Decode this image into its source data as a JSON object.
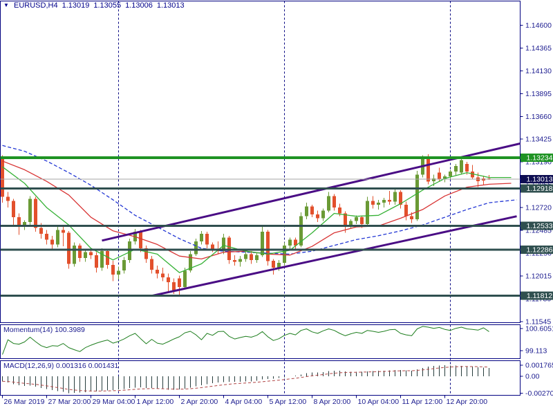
{
  "header": {
    "symbol_period": "EURUSD,H4",
    "open": "1.13019",
    "high": "1.13055",
    "low": "1.13006",
    "close": "1.13013"
  },
  "icons": {
    "dropdown": "▼"
  },
  "panels": {
    "momentum_label": "Momentum(14) 100.3989",
    "macd_label": "MACD(12,26,9) 0.001316 0.001431"
  },
  "colors": {
    "frame": "#000080",
    "axis_text": "#1b1b8f",
    "separator": "#000080",
    "candle_up": "#6a9a35",
    "candle_down": "#e2502c",
    "ma_fast": "#35b135",
    "ma_mid": "#d83434",
    "ma_slow": "#2236d4",
    "channel": "#4a0d85",
    "level_green": "#1e9323",
    "level_teal": "#2F4F4F",
    "current_line": "#a6a6a6",
    "current_box": "#0e0e52",
    "momentum_line": "#1e7e1e",
    "macd_hist": "#263c3c",
    "macd_signal": "#b04343",
    "marker_text": "#ffffff"
  },
  "chart_data": {
    "type": "candlestick+indicators",
    "symbol": "EURUSD",
    "timeframe": "H4",
    "x_labels": [
      {
        "index": 0,
        "text": "26 Mar 2019"
      },
      {
        "index": 8,
        "text": "27 Mar 20:00"
      },
      {
        "index": 16,
        "text": "29 Mar 04:00"
      },
      {
        "index": 24,
        "text": "1 Apr 12:00"
      },
      {
        "index": 32,
        "text": "2 Apr 20:00"
      },
      {
        "index": 40,
        "text": "4 Apr 04:00"
      },
      {
        "index": 48,
        "text": "5 Apr 12:00"
      },
      {
        "index": 56,
        "text": "8 Apr 20:00"
      },
      {
        "index": 64,
        "text": "10 Apr 04:00"
      },
      {
        "index": 72,
        "text": "11 Apr 12:00"
      },
      {
        "index": 80,
        "text": "12 Apr 20:00"
      }
    ],
    "separator_indices": [
      21,
      51,
      81
    ],
    "price_ticks": [
      "1.14600",
      "1.14365",
      "1.14130",
      "1.13895",
      "1.13660",
      "1.13425",
      "1.13190",
      "1.12955",
      "1.12720",
      "1.12485",
      "1.12250",
      "1.12015",
      "1.11780",
      "1.11545"
    ],
    "price_markers": [
      {
        "text": "1.13234",
        "price": 1.13234,
        "box": "level_green",
        "line": "level_green",
        "lw": 4
      },
      {
        "text": "1.13013",
        "price": 1.13013,
        "box": "current_box",
        "line": "current_line",
        "lw": 1
      },
      {
        "text": "1.12918",
        "price": 1.12918,
        "box": "level_teal",
        "line": "level_teal",
        "lw": 3
      },
      {
        "text": "1.12533",
        "price": 1.12533,
        "box": "level_teal",
        "line": "level_teal",
        "lw": 3
      },
      {
        "text": "1.12286",
        "price": 1.12286,
        "box": "level_teal",
        "line": "level_teal",
        "lw": 3
      },
      {
        "text": "1.11812",
        "price": 1.11812,
        "box": "level_teal",
        "line": "level_teal",
        "lw": 3
      }
    ],
    "channel": {
      "upper": [
        [
          18,
          1.1238
        ],
        [
          94,
          1.1338
        ]
      ],
      "lower": [
        [
          27,
          1.1181
        ],
        [
          93,
          1.1263
        ]
      ]
    },
    "ma_fast": [
      [
        0,
        1.1314
      ],
      [
        4,
        1.1297
      ],
      [
        8,
        1.1272
      ],
      [
        12,
        1.1254
      ],
      [
        16,
        1.123
      ],
      [
        20,
        1.1218
      ],
      [
        24,
        1.1229
      ],
      [
        28,
        1.1224
      ],
      [
        32,
        1.1205
      ],
      [
        36,
        1.1214
      ],
      [
        40,
        1.1233
      ],
      [
        44,
        1.1227
      ],
      [
        48,
        1.1224
      ],
      [
        52,
        1.1228
      ],
      [
        56,
        1.1246
      ],
      [
        60,
        1.1266
      ],
      [
        64,
        1.1263
      ],
      [
        68,
        1.1264
      ],
      [
        72,
        1.1276
      ],
      [
        76,
        1.129
      ],
      [
        80,
        1.1302
      ],
      [
        84,
        1.1308
      ],
      [
        88,
        1.1303
      ],
      [
        92,
        1.1303
      ]
    ],
    "ma_mid": [
      [
        0,
        1.132
      ],
      [
        4,
        1.1311
      ],
      [
        8,
        1.1299
      ],
      [
        12,
        1.1285
      ],
      [
        16,
        1.1262
      ],
      [
        20,
        1.1248
      ],
      [
        24,
        1.1242
      ],
      [
        28,
        1.1234
      ],
      [
        32,
        1.1222
      ],
      [
        36,
        1.1219
      ],
      [
        40,
        1.1226
      ],
      [
        44,
        1.1227
      ],
      [
        48,
        1.1224
      ],
      [
        52,
        1.1223
      ],
      [
        56,
        1.1232
      ],
      [
        60,
        1.1246
      ],
      [
        64,
        1.1252
      ],
      [
        68,
        1.1253
      ],
      [
        72,
        1.1261
      ],
      [
        76,
        1.127
      ],
      [
        80,
        1.1284
      ],
      [
        84,
        1.1293
      ],
      [
        88,
        1.1296
      ],
      [
        92,
        1.1297
      ]
    ],
    "ma_slow": [
      [
        0,
        1.1336
      ],
      [
        4,
        1.133
      ],
      [
        8,
        1.132
      ],
      [
        12,
        1.1308
      ],
      [
        16,
        1.1295
      ],
      [
        20,
        1.128
      ],
      [
        24,
        1.1264
      ],
      [
        28,
        1.1252
      ],
      [
        32,
        1.124
      ],
      [
        36,
        1.123
      ],
      [
        40,
        1.1227
      ],
      [
        44,
        1.1226
      ],
      [
        48,
        1.1225
      ],
      [
        52,
        1.1224
      ],
      [
        56,
        1.1227
      ],
      [
        60,
        1.1233
      ],
      [
        64,
        1.1239
      ],
      [
        68,
        1.1243
      ],
      [
        72,
        1.1248
      ],
      [
        76,
        1.1254
      ],
      [
        80,
        1.1262
      ],
      [
        84,
        1.127
      ],
      [
        88,
        1.1277
      ],
      [
        93,
        1.128
      ]
    ],
    "candles": [
      [
        1.1324,
        1.1326,
        1.1277,
        1.1283
      ],
      [
        1.1283,
        1.1288,
        1.1272,
        1.1279
      ],
      [
        1.1279,
        1.1281,
        1.1254,
        1.1262
      ],
      [
        1.1262,
        1.1266,
        1.1244,
        1.1253
      ],
      [
        1.1253,
        1.1259,
        1.1249,
        1.1257
      ],
      [
        1.1257,
        1.1284,
        1.1253,
        1.1281
      ],
      [
        1.1281,
        1.1283,
        1.1247,
        1.1251
      ],
      [
        1.1251,
        1.1256,
        1.124,
        1.1245
      ],
      [
        1.1245,
        1.1249,
        1.1234,
        1.1239
      ],
      [
        1.1239,
        1.1243,
        1.1229,
        1.1234
      ],
      [
        1.1234,
        1.1252,
        1.1231,
        1.1249
      ],
      [
        1.1249,
        1.1253,
        1.1232,
        1.1246
      ],
      [
        1.1246,
        1.1248,
        1.1209,
        1.1214
      ],
      [
        1.1214,
        1.1236,
        1.1211,
        1.1233
      ],
      [
        1.1233,
        1.1235,
        1.1216,
        1.122
      ],
      [
        1.122,
        1.1229,
        1.1216,
        1.1226
      ],
      [
        1.1226,
        1.123,
        1.1219,
        1.1223
      ],
      [
        1.1223,
        1.1226,
        1.1205,
        1.121
      ],
      [
        1.121,
        1.123,
        1.1207,
        1.1227
      ],
      [
        1.1227,
        1.1229,
        1.1209,
        1.1213
      ],
      [
        1.1213,
        1.1217,
        1.1196,
        1.1203
      ],
      [
        1.1203,
        1.1211,
        1.1198,
        1.1207
      ],
      [
        1.1207,
        1.1221,
        1.1204,
        1.1218
      ],
      [
        1.1218,
        1.124,
        1.1215,
        1.1237
      ],
      [
        1.1237,
        1.125,
        1.1234,
        1.1247
      ],
      [
        1.1247,
        1.1249,
        1.1226,
        1.123
      ],
      [
        1.123,
        1.1233,
        1.1215,
        1.1219
      ],
      [
        1.1219,
        1.1222,
        1.1204,
        1.1208
      ],
      [
        1.1208,
        1.1212,
        1.1199,
        1.1204
      ],
      [
        1.1204,
        1.121,
        1.1196,
        1.12
      ],
      [
        1.12,
        1.1204,
        1.1185,
        1.1195
      ],
      [
        1.1195,
        1.1199,
        1.1183,
        1.1187
      ],
      [
        1.1199,
        1.1202,
        1.118,
        1.119
      ],
      [
        1.119,
        1.121,
        1.1188,
        1.1207
      ],
      [
        1.1207,
        1.1227,
        1.1205,
        1.1224
      ],
      [
        1.1224,
        1.124,
        1.1222,
        1.1237
      ],
      [
        1.1237,
        1.1248,
        1.1234,
        1.1245
      ],
      [
        1.1245,
        1.1247,
        1.123,
        1.1234
      ],
      [
        1.1234,
        1.1236,
        1.1226,
        1.1229
      ],
      [
        1.1229,
        1.1237,
        1.1224,
        1.1227
      ],
      [
        1.1227,
        1.1245,
        1.1224,
        1.1241
      ],
      [
        1.1241,
        1.1243,
        1.1214,
        1.1218
      ],
      [
        1.1218,
        1.1223,
        1.1212,
        1.1216
      ],
      [
        1.1216,
        1.1222,
        1.1211,
        1.1219
      ],
      [
        1.1219,
        1.1227,
        1.1216,
        1.1224
      ],
      [
        1.1224,
        1.1227,
        1.1214,
        1.1218
      ],
      [
        1.1218,
        1.1226,
        1.1215,
        1.1223
      ],
      [
        1.1223,
        1.1252,
        1.1221,
        1.1247
      ],
      [
        1.1247,
        1.1249,
        1.1212,
        1.1217
      ],
      [
        1.1217,
        1.1219,
        1.1203,
        1.121
      ],
      [
        1.121,
        1.1218,
        1.1207,
        1.1215
      ],
      [
        1.1215,
        1.1236,
        1.1212,
        1.1233
      ],
      [
        1.1233,
        1.1241,
        1.1229,
        1.1239
      ],
      [
        1.1239,
        1.1241,
        1.1229,
        1.1233
      ],
      [
        1.1233,
        1.1267,
        1.1231,
        1.1263
      ],
      [
        1.1263,
        1.1277,
        1.126,
        1.1273
      ],
      [
        1.1273,
        1.1275,
        1.1262,
        1.1265
      ],
      [
        1.1265,
        1.1269,
        1.1257,
        1.1261
      ],
      [
        1.1261,
        1.1271,
        1.1258,
        1.1269
      ],
      [
        1.1269,
        1.1288,
        1.1267,
        1.1284
      ],
      [
        1.1284,
        1.1286,
        1.1269,
        1.1272
      ],
      [
        1.1272,
        1.1276,
        1.1263,
        1.1266
      ],
      [
        1.1266,
        1.1268,
        1.1246,
        1.1254
      ],
      [
        1.1254,
        1.126,
        1.1251,
        1.1258
      ],
      [
        1.1258,
        1.1264,
        1.1255,
        1.1262
      ],
      [
        1.1262,
        1.1264,
        1.1251,
        1.1255
      ],
      [
        1.1255,
        1.1283,
        1.1252,
        1.1279
      ],
      [
        1.1279,
        1.1284,
        1.1271,
        1.1275
      ],
      [
        1.1275,
        1.128,
        1.127,
        1.1277
      ],
      [
        1.1277,
        1.1282,
        1.1272,
        1.128
      ],
      [
        1.128,
        1.1289,
        1.1275,
        1.1278
      ],
      [
        1.1278,
        1.1291,
        1.1275,
        1.1288
      ],
      [
        1.1288,
        1.129,
        1.1271,
        1.1275
      ],
      [
        1.1275,
        1.1278,
        1.1259,
        1.1263
      ],
      [
        1.1263,
        1.1267,
        1.1256,
        1.126
      ],
      [
        1.126,
        1.131,
        1.1258,
        1.1306
      ],
      [
        1.1306,
        1.1326,
        1.1303,
        1.1322
      ],
      [
        1.1322,
        1.1327,
        1.1296,
        1.1299
      ],
      [
        1.1299,
        1.1306,
        1.1294,
        1.1302
      ],
      [
        1.1308,
        1.1313,
        1.1299,
        1.1301
      ],
      [
        1.1301,
        1.1306,
        1.1298,
        1.1304
      ],
      [
        1.1304,
        1.1311,
        1.1301,
        1.1309
      ],
      [
        1.1309,
        1.1317,
        1.1305,
        1.1315
      ],
      [
        1.1308,
        1.1323,
        1.1306,
        1.1321
      ],
      [
        1.1317,
        1.1319,
        1.1306,
        1.1309
      ],
      [
        1.1309,
        1.1316,
        1.1301,
        1.1303
      ],
      [
        1.1303,
        1.1308,
        1.1293,
        1.1299
      ],
      [
        1.1302,
        1.1305,
        1.1295,
        1.13
      ],
      [
        1.13019,
        1.13055,
        1.13006,
        1.13013
      ]
    ],
    "momentum": {
      "name": "Momentum(14)",
      "current": 100.3989,
      "ticks": [
        {
          "text": "100.6051",
          "value": 100.6051
        },
        {
          "text": "99.113",
          "value": 99.113
        }
      ],
      "values": [
        98.85,
        99.85,
        99.6,
        99.55,
        99.7,
        100.02,
        99.72,
        99.45,
        99.32,
        99.45,
        99.42,
        99.6,
        99.32,
        99.18,
        99.05,
        99.32,
        99.48,
        99.62,
        99.74,
        99.83,
        99.62,
        99.74,
        99.9,
        100.12,
        100.28,
        99.92,
        99.58,
        99.88,
        99.62,
        99.55,
        99.72,
        99.9,
        100.05,
        100.32,
        100.42,
        100.18,
        99.85,
        100.28,
        100.15,
        100.4,
        100.42,
        100.08,
        99.9,
        100.0,
        100.08,
        100.02,
        100.15,
        100.4,
        100.05,
        99.8,
        99.92,
        100.15,
        100.28,
        100.18,
        100.48,
        100.58,
        100.38,
        100.28,
        100.45,
        100.58,
        100.48,
        100.28,
        100.12,
        100.25,
        100.35,
        100.28,
        100.48,
        100.42,
        100.35,
        100.42,
        100.52,
        100.55,
        100.28,
        100.18,
        100.12,
        100.58,
        100.75,
        100.7,
        100.62,
        100.68,
        100.55,
        100.48,
        100.62,
        100.7,
        100.58,
        100.55,
        100.5,
        100.65,
        100.3989
      ]
    },
    "macd": {
      "name": "MACD(12,26,9)",
      "current_main": 0.001316,
      "current_signal": 0.001431,
      "ticks": [
        {
          "text": "0.001765",
          "value": 0.001765
        },
        {
          "text": "0.00",
          "value": 0
        },
        {
          "text": "-0.002703",
          "value": -0.002703
        }
      ],
      "hist": [
        -0.0008,
        -0.001,
        -0.00125,
        -0.00145,
        -0.00155,
        -0.0015,
        -0.00165,
        -0.00185,
        -0.00205,
        -0.0022,
        -0.00235,
        -0.0025,
        -0.00268,
        -0.00262,
        -0.00258,
        -0.00252,
        -0.00245,
        -0.00242,
        -0.00232,
        -0.00224,
        -0.0022,
        -0.00212,
        -0.00202,
        -0.0019,
        -0.0018,
        -0.00178,
        -0.00185,
        -0.00188,
        -0.00195,
        -0.00205,
        -0.00215,
        -0.00215,
        -0.00208,
        -0.00196,
        -0.0018,
        -0.0016,
        -0.00142,
        -0.00125,
        -0.00112,
        -0.00102,
        -0.00092,
        -0.0009,
        -0.0009,
        -0.00088,
        -0.00084,
        -0.0008,
        -0.0007,
        -0.00052,
        -0.00042,
        -0.0004,
        -0.0003,
        -0.00015,
        2e-05,
        0.0001,
        0.0003,
        0.0005,
        0.00058,
        0.0006,
        0.00068,
        0.0008,
        0.00088,
        0.00086,
        0.00078,
        0.00072,
        0.0007,
        0.00072,
        0.00078,
        0.00082,
        0.00086,
        0.0009,
        0.00096,
        0.001,
        0.00098,
        0.00092,
        0.0009,
        0.00112,
        0.00135,
        0.00152,
        0.00163,
        0.00172,
        0.001765,
        0.00172,
        0.0017,
        0.00165,
        0.0016,
        0.00152,
        0.00146,
        0.0014,
        0.001316
      ],
      "signal_period": 9
    }
  }
}
